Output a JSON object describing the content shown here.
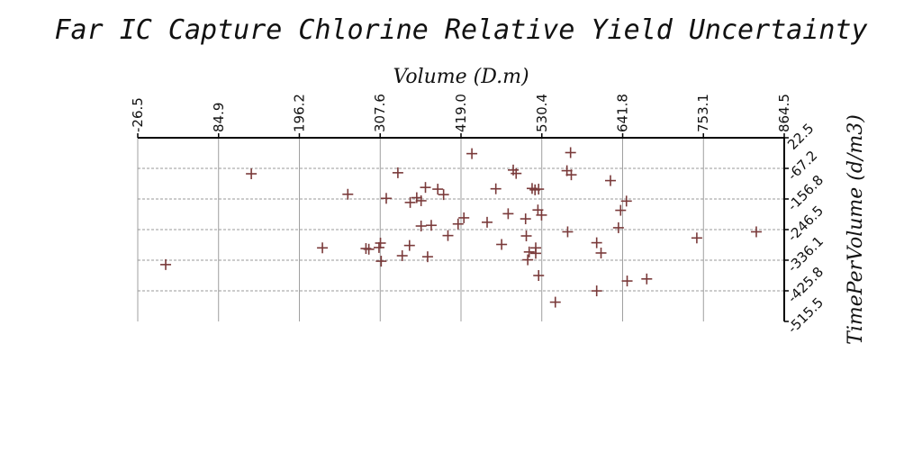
{
  "chart_data": {
    "type": "scatter",
    "title": "Far IC Capture Chlorine Relative Yield Uncertainty",
    "xlabel": "Volume (D.m)",
    "ylabel": "TimePerVolume (d/m3)",
    "x_ticks": [
      "-26.5",
      "84.9",
      "196.2",
      "307.6",
      "419.0",
      "530.4",
      "641.8",
      "753.1",
      "864.5"
    ],
    "y_ticks": [
      "22.5",
      "-67.2",
      "-156.8",
      "-246.5",
      "-336.1",
      "-425.8",
      "-515.5"
    ],
    "xlim": [
      -26.5,
      864.5
    ],
    "ylim": [
      -515.5,
      22.5
    ],
    "x_axis_position": "top",
    "y_axis_position": "right",
    "grid": true,
    "marker": "+",
    "color": "#7a3a3a",
    "points": [
      [
        12,
        -349
      ],
      [
        130,
        -83
      ],
      [
        263,
        -143
      ],
      [
        228,
        -300
      ],
      [
        288,
        -302
      ],
      [
        292,
        -304
      ],
      [
        306,
        -299
      ],
      [
        308,
        -286
      ],
      [
        309,
        -339
      ],
      [
        316,
        -155
      ],
      [
        332,
        -80
      ],
      [
        338,
        -323
      ],
      [
        348,
        -293
      ],
      [
        349,
        -167
      ],
      [
        358,
        -153
      ],
      [
        364,
        -236
      ],
      [
        364,
        -162
      ],
      [
        370,
        -123
      ],
      [
        373,
        -326
      ],
      [
        378,
        -234
      ],
      [
        387,
        -128
      ],
      [
        395,
        -144
      ],
      [
        401,
        -264
      ],
      [
        415,
        -230
      ],
      [
        423,
        -212
      ],
      [
        434,
        -24
      ],
      [
        455,
        -225
      ],
      [
        467,
        -127
      ],
      [
        475,
        -290
      ],
      [
        484,
        -200
      ],
      [
        491,
        -72
      ],
      [
        495,
        -82
      ],
      [
        509,
        -265
      ],
      [
        508,
        -215
      ],
      [
        511,
        -335
      ],
      [
        513,
        -312
      ],
      [
        517,
        -126
      ],
      [
        521,
        -130
      ],
      [
        522,
        -316
      ],
      [
        522,
        -300
      ],
      [
        525,
        -189
      ],
      [
        530,
        -204
      ],
      [
        526,
        -381
      ],
      [
        549,
        -459
      ],
      [
        566,
        -253
      ],
      [
        565,
        -74
      ],
      [
        570,
        -21
      ],
      [
        571,
        -86
      ],
      [
        606,
        -285
      ],
      [
        606,
        -426
      ],
      [
        612,
        -315
      ],
      [
        625,
        -103
      ],
      [
        636,
        -241
      ],
      [
        639,
        -190
      ],
      [
        647,
        -163
      ],
      [
        648,
        -397
      ],
      [
        675,
        -391
      ],
      [
        744,
        -271
      ],
      [
        826,
        -253
      ],
      [
        526,
        -128
      ]
    ]
  }
}
